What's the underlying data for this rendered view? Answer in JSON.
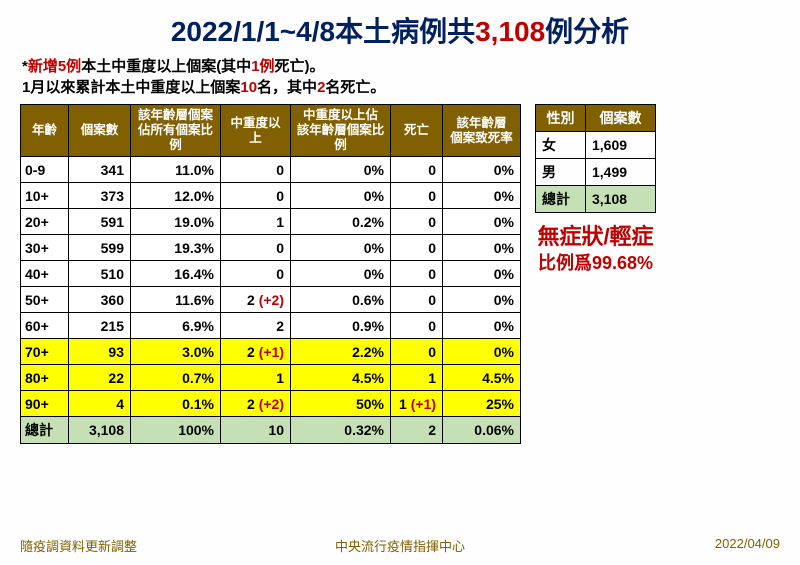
{
  "title": {
    "pre": "2022/1/1~4/8本土病例共",
    "highlight": "3,108",
    "post": "例分析"
  },
  "subtitle": {
    "line1_pre": "*",
    "line1_red1": "新增5例",
    "line1_mid": "本土中重度以上個案(其中",
    "line1_red2": "1例",
    "line1_post": "死亡)。",
    "line2_pre": " 1月以來累計本土中重度以上個案",
    "line2_red1": "10",
    "line2_mid": "名，其中",
    "line2_red2": "2",
    "line2_post": "名死亡。"
  },
  "main_table": {
    "headers": [
      "年齡",
      "個案數",
      "該年齡層個案\n佔所有個案比例",
      "中重度以上",
      "中重度以上佔\n該年齡層個案比例",
      "死亡",
      "該年齡層\n個案致死率"
    ],
    "rows": [
      {
        "age": "0-9",
        "cases": "341",
        "pct": "11.0%",
        "sev": "0",
        "sev_d": "",
        "sevpct": "0%",
        "death": "0",
        "death_d": "",
        "drate": "0%",
        "hl": false
      },
      {
        "age": "10+",
        "cases": "373",
        "pct": "12.0%",
        "sev": "0",
        "sev_d": "",
        "sevpct": "0%",
        "death": "0",
        "death_d": "",
        "drate": "0%",
        "hl": false
      },
      {
        "age": "20+",
        "cases": "591",
        "pct": "19.0%",
        "sev": "1",
        "sev_d": "",
        "sevpct": "0.2%",
        "death": "0",
        "death_d": "",
        "drate": "0%",
        "hl": false
      },
      {
        "age": "30+",
        "cases": "599",
        "pct": "19.3%",
        "sev": "0",
        "sev_d": "",
        "sevpct": "0%",
        "death": "0",
        "death_d": "",
        "drate": "0%",
        "hl": false
      },
      {
        "age": "40+",
        "cases": "510",
        "pct": "16.4%",
        "sev": "0",
        "sev_d": "",
        "sevpct": "0%",
        "death": "0",
        "death_d": "",
        "drate": "0%",
        "hl": false
      },
      {
        "age": "50+",
        "cases": "360",
        "pct": "11.6%",
        "sev": "2",
        "sev_d": " (+2)",
        "sevpct": "0.6%",
        "death": "0",
        "death_d": "",
        "drate": "0%",
        "hl": false
      },
      {
        "age": "60+",
        "cases": "215",
        "pct": "6.9%",
        "sev": "2",
        "sev_d": "",
        "sevpct": "0.9%",
        "death": "0",
        "death_d": "",
        "drate": "0%",
        "hl": false
      },
      {
        "age": "70+",
        "cases": "93",
        "pct": "3.0%",
        "sev": "2",
        "sev_d": " (+1)",
        "sevpct": "2.2%",
        "death": "0",
        "death_d": "",
        "drate": "0%",
        "hl": true
      },
      {
        "age": "80+",
        "cases": "22",
        "pct": "0.7%",
        "sev": "1",
        "sev_d": "",
        "sevpct": "4.5%",
        "death": "1",
        "death_d": "",
        "drate": "4.5%",
        "hl": true
      },
      {
        "age": "90+",
        "cases": "4",
        "pct": "0.1%",
        "sev": "2",
        "sev_d": " (+2)",
        "sevpct": "50%",
        "death": "1",
        "death_d": " (+1)",
        "drate": "25%",
        "hl": true
      }
    ],
    "total": {
      "age": "總計",
      "cases": "3,108",
      "pct": "100%",
      "sev": "10",
      "sevpct": "0.32%",
      "death": "2",
      "drate": "0.06%"
    }
  },
  "gender_table": {
    "headers": [
      "性別",
      "個案數"
    ],
    "rows": [
      {
        "label": "女",
        "val": "1,609"
      },
      {
        "label": "男",
        "val": "1,499"
      }
    ],
    "total": {
      "label": "總計",
      "val": "3,108"
    }
  },
  "callout": {
    "line1": "無症狀/輕症",
    "line2": "比例爲99.68%"
  },
  "footer": {
    "left": "隨疫調資料更新調整",
    "center": "中央流行疫情指揮中心",
    "right": "2022/04/09"
  }
}
